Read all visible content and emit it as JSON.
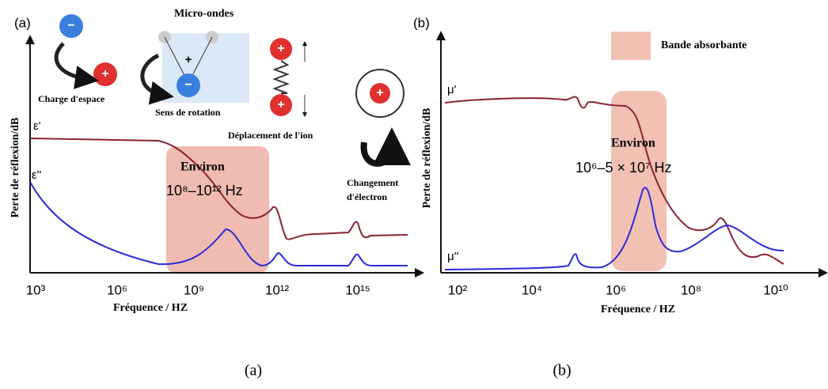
{
  "panel_a": {
    "tag": "(a)",
    "microwave": "Micro-ondes",
    "space_charge": "Charge d'espace",
    "rotation": "Sens de rotation",
    "ion": "Déplacement de l'ion",
    "electron_1": "Changement",
    "electron_2": "d'électron",
    "eps_real": "ε'",
    "eps_imag": "ε''",
    "range_1": "Environ",
    "range_2": "10⁸–10¹² Hz",
    "y_label": "Perte de réflexion/dB",
    "x_label": "Fréquence / HZ",
    "x_ticks": [
      "10³",
      "10⁶",
      "10⁹",
      "10¹²",
      "10¹⁵"
    ],
    "caption": "(a)"
  },
  "panel_b": {
    "tag": "(b)",
    "band": "Bande absorbante",
    "mu_real": "μ'",
    "mu_imag": "μ''",
    "range_1": "Environ",
    "range_2": "10⁶–5 × 10⁷ Hz",
    "y_label": "Perte de réflexion/dB",
    "x_label": "Fréquence / HZ",
    "x_ticks": [
      "10²",
      "10⁴",
      "10⁶",
      "10⁸",
      "10¹⁰"
    ],
    "caption": "(b)"
  },
  "signs": {
    "plus": "+",
    "minus": "−"
  }
}
